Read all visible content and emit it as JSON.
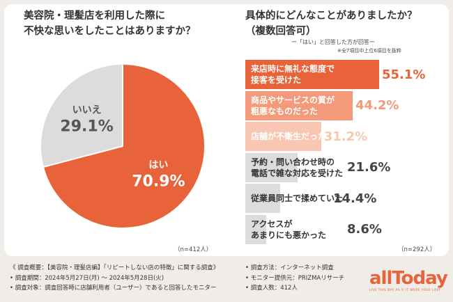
{
  "left": {
    "title_line1": "美容院・理髪店を利用した際に",
    "title_line2": "不快な思いをしたことはありますか？",
    "n": "（n=412人）"
  },
  "right": {
    "title_line1": "具体的にどんなことがありましたか？",
    "title_line2": "（複数回答可）",
    "note1": "ー「はい」と回答した方が回答ー",
    "note2": "※全7項目中上位6項目を抜粋",
    "n": "（n=292人）"
  },
  "colors": {
    "accent": "#e8623a",
    "gray": "#dcdcdc",
    "bar_tints": [
      "#e8623a",
      "#f39a7a",
      "#f8c6b2",
      "#dcdcdc",
      "#dcdcdc",
      "#dcdcdc"
    ]
  },
  "chart_data": [
    {
      "type": "pie",
      "categories": [
        "はい",
        "いいえ"
      ],
      "values": [
        70.9,
        29.1
      ],
      "value_labels": [
        "70.9%",
        "29.1%"
      ]
    },
    {
      "type": "bar",
      "orientation": "horizontal",
      "categories": [
        "来店時に無礼な態度で\n接客を受けた",
        "商品やサービスの質が\n粗悪なものだった",
        "店舗が不衛生だった",
        "予約・問い合わせ時の\n電話で雑な対応を受けた",
        "従業員同士で揉めていた",
        "アクセスが\nあまりにも悪かった"
      ],
      "values": [
        55.1,
        44.2,
        31.2,
        21.6,
        14.4,
        8.6
      ],
      "value_labels": [
        "55.1%",
        "44.2%",
        "31.2%",
        "21.6%",
        "14.4%",
        "8.6%"
      ],
      "xlim": [
        0,
        55.1
      ]
    }
  ],
  "footer": {
    "left": [
      "《 調査概要：【美容院・理髪店編】「リピートしない店の特徴」に関する調査》",
      "• 調査期間：2024年5月27日(月) ～ 2024年5月28日(火)",
      "• 調査対象：調査回答時に店舗利用者（ユーザー）であると回答したモニター"
    ],
    "right": [
      "• 調査方法：インターネット調査",
      "• モニター提供元：PRIZMAリサーチ",
      "• 調査人数：412人"
    ]
  },
  "logo": {
    "text": "allToday",
    "tagline": "LIVE THIS DAY AS IF IT WERE YOUR LAST"
  }
}
